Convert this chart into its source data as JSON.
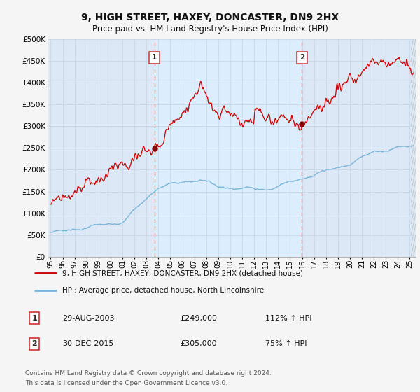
{
  "title": "9, HIGH STREET, HAXEY, DONCASTER, DN9 2HX",
  "subtitle": "Price paid vs. HM Land Registry's House Price Index (HPI)",
  "ylim": [
    0,
    500000
  ],
  "ytick_values": [
    0,
    50000,
    100000,
    150000,
    200000,
    250000,
    300000,
    350000,
    400000,
    450000,
    500000
  ],
  "sale1": {
    "date_num": 2003.66,
    "price": 249000,
    "label": "1",
    "date_str": "29-AUG-2003",
    "hpi_pct": "112% ↑ HPI"
  },
  "sale2": {
    "date_num": 2015.99,
    "price": 305000,
    "label": "2",
    "date_str": "30-DEC-2015",
    "hpi_pct": "75% ↑ HPI"
  },
  "legend_line1": "9, HIGH STREET, HAXEY, DONCASTER, DN9 2HX (detached house)",
  "legend_line2": "HPI: Average price, detached house, North Lincolnshire",
  "footer1": "Contains HM Land Registry data © Crown copyright and database right 2024.",
  "footer2": "This data is licensed under the Open Government Licence v3.0.",
  "hpi_color": "#7ab4d8",
  "price_color": "#cc0000",
  "marker_color": "#880000",
  "vline_color": "#ee8888",
  "shade_color": "#ddeeff",
  "background_color": "#dce8f5",
  "grid_color": "#c8d8e8",
  "fig_bg": "#f5f5f5",
  "x_start": 1994.8,
  "x_end": 2025.5,
  "xtick_years": [
    1995,
    1996,
    1997,
    1998,
    1999,
    2000,
    2001,
    2002,
    2003,
    2004,
    2005,
    2006,
    2007,
    2008,
    2009,
    2010,
    2011,
    2012,
    2013,
    2014,
    2015,
    2016,
    2017,
    2018,
    2019,
    2020,
    2021,
    2022,
    2023,
    2024,
    2025
  ]
}
